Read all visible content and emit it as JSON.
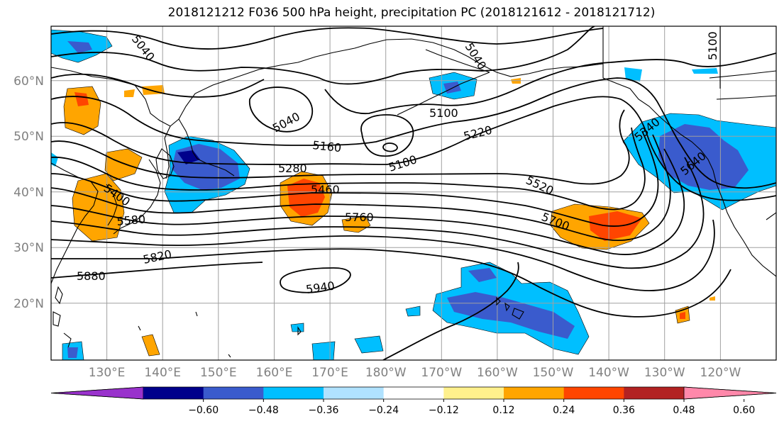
{
  "title": "2018121212 F036 500 hPa height, precipitation PC (2018121612 - 2018121712)",
  "latitude_labels": [
    "60°N",
    "50°N",
    "40°N",
    "30°N",
    "20°N"
  ],
  "longitude_labels": [
    "130°E",
    "140°E",
    "150°E",
    "160°E",
    "170°E",
    "180°W",
    "170°W",
    "160°W",
    "150°W",
    "140°W",
    "130°W",
    "120°W"
  ],
  "contour_labels": [
    "5040",
    "5040",
    "5040",
    "5100",
    "5100",
    "5100",
    "5160",
    "5220",
    "5280",
    "5340",
    "5400",
    "5460",
    "5520",
    "5580",
    "5640",
    "5700",
    "5760",
    "5820",
    "5880",
    "5940"
  ],
  "colorbar": {
    "tick_labels": [
      "−0.60",
      "−0.48",
      "−0.36",
      "−0.24",
      "−0.12",
      "0.12",
      "0.24",
      "0.36",
      "0.48",
      "0.60"
    ],
    "colors": [
      "#9932cc",
      "#00008b",
      "#3a5bcd",
      "#00bfff",
      "#b0e2ff",
      "#ffffff",
      "#fff08c",
      "#ffa500",
      "#ff4500",
      "#b22222",
      "#ff88aa"
    ]
  },
  "colors": {
    "continent_outline": "#000000",
    "grid": "#a0a0a0",
    "contour": "#000000"
  }
}
